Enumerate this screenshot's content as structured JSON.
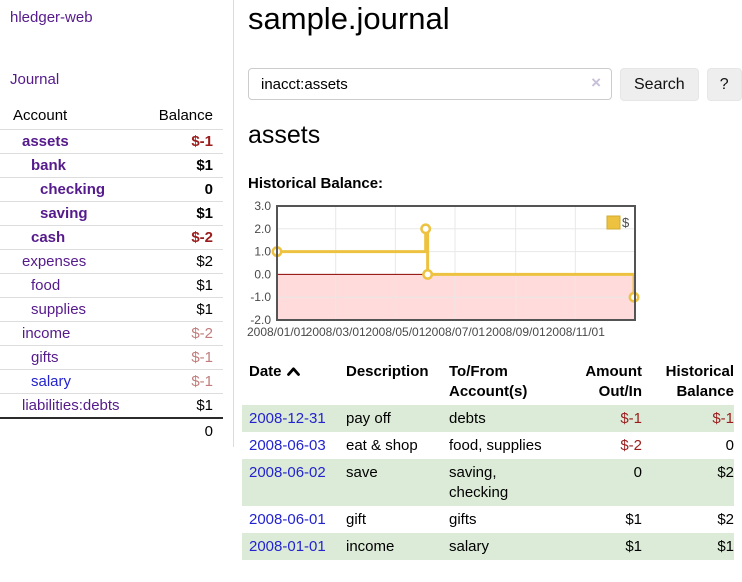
{
  "colors": {
    "link_purple": "#551a8b",
    "link_blue": "#2323cf",
    "negative": "#9b1c1c",
    "negative_light": "#c17d7d",
    "row_highlight_green": "#dcebd8",
    "chart_line": "#edc240",
    "chart_negative_fill": "#ffdbdb",
    "chart_zero_line": "#8b0000",
    "chart_grid": "#e8e8e8",
    "chart_border": "#545454",
    "button_bg": "#eeeeee"
  },
  "sidebar": {
    "app_title": "hledger-web",
    "nav_journal": "Journal",
    "accounts": {
      "col_account": "Account",
      "col_balance": "Balance",
      "rows": [
        {
          "label": "assets",
          "indent": 1,
          "bold": true,
          "balance": "$-1",
          "balance_style": "negative",
          "link_color": "purple"
        },
        {
          "label": "bank",
          "indent": 2,
          "bold": true,
          "balance": "$1",
          "balance_style": "normal",
          "link_color": "purple"
        },
        {
          "label": "checking",
          "indent": 3,
          "bold": true,
          "balance": "0",
          "balance_style": "normal",
          "link_color": "purple"
        },
        {
          "label": "saving",
          "indent": 3,
          "bold": true,
          "balance": "$1",
          "balance_style": "normal",
          "link_color": "purple"
        },
        {
          "label": "cash",
          "indent": 2,
          "bold": true,
          "balance": "$-2",
          "balance_style": "negative",
          "link_color": "purple"
        },
        {
          "label": "expenses",
          "indent": 1,
          "bold": false,
          "balance": "$2",
          "balance_style": "normal",
          "link_color": "purple"
        },
        {
          "label": "food",
          "indent": 2,
          "bold": false,
          "balance": "$1",
          "balance_style": "normal",
          "link_color": "purple"
        },
        {
          "label": "supplies",
          "indent": 2,
          "bold": false,
          "balance": "$1",
          "balance_style": "normal",
          "link_color": "purple"
        },
        {
          "label": "income",
          "indent": 1,
          "bold": false,
          "balance": "$-2",
          "balance_style": "negative_light",
          "link_color": "purple"
        },
        {
          "label": "gifts",
          "indent": 2,
          "bold": false,
          "balance": "$-1",
          "balance_style": "negative_light",
          "link_color": "purple"
        },
        {
          "label": "salary",
          "indent": 2,
          "bold": false,
          "balance": "$-1",
          "balance_style": "negative_light",
          "link_color": "blue"
        },
        {
          "label": "liabilities:debts",
          "indent": 1,
          "bold": false,
          "balance": "$1",
          "balance_style": "normal",
          "link_color": "purple"
        }
      ],
      "total": "0"
    }
  },
  "main": {
    "title": "sample.journal",
    "search": {
      "value": "inacct:assets",
      "clear_glyph": "×",
      "search_button": "Search",
      "help_button": "?"
    },
    "account_title": "assets",
    "chart_heading": "Historical Balance:"
  },
  "chart_data": {
    "type": "line",
    "interpolation": "step",
    "title": "Historical Balance:",
    "series": [
      {
        "name": "$",
        "color": "#edc240",
        "points": [
          {
            "date": "2008-01-01",
            "value": 1.0
          },
          {
            "date": "2008-06-01",
            "value": 2.0
          },
          {
            "date": "2008-06-03",
            "value": 0.0
          },
          {
            "date": "2008-12-31",
            "value": -1.0
          }
        ]
      }
    ],
    "x_range": [
      "2008-01-01",
      "2009-01-01"
    ],
    "ylim": [
      -2.0,
      3.0
    ],
    "y_ticks": [
      {
        "v": 3.0,
        "label": "3.0"
      },
      {
        "v": 2.0,
        "label": "2.0"
      },
      {
        "v": 1.0,
        "label": "1.0"
      },
      {
        "v": 0.0,
        "label": "0.0"
      },
      {
        "v": -1.0,
        "label": "-1.0"
      },
      {
        "v": -2.0,
        "label": "-2.0"
      }
    ],
    "x_ticks": [
      {
        "date": "2008-01-01",
        "label": "2008/01/01"
      },
      {
        "date": "2008-03-01",
        "label": "2008/03/01"
      },
      {
        "date": "2008-05-01",
        "label": "2008/05/01"
      },
      {
        "date": "2008-07-01",
        "label": "2008/07/01"
      },
      {
        "date": "2008-09-01",
        "label": "2008/09/01"
      },
      {
        "date": "2008-11-01",
        "label": "2008/11/01"
      }
    ],
    "grid": true,
    "negative_region_fill": "#ffdbdb",
    "zero_line_color": "#8b0000",
    "legend": {
      "label": "$",
      "position": "top-right"
    }
  },
  "register": {
    "headers": [
      "Date",
      "Description",
      "To/From Account(s)",
      "Amount Out/In",
      "Historical Balance"
    ],
    "sort": {
      "column": "Date",
      "direction": "ascending"
    },
    "rows": [
      {
        "date": "2008-12-31",
        "description": "pay off",
        "accounts": "debts",
        "amount": "$-1",
        "amount_negative": true,
        "balance": "$-1",
        "balance_negative": true,
        "highlighted": true
      },
      {
        "date": "2008-06-03",
        "description": "eat & shop",
        "accounts": "food, supplies",
        "amount": "$-2",
        "amount_negative": true,
        "balance": "0",
        "balance_negative": false,
        "highlighted": false
      },
      {
        "date": "2008-06-02",
        "description": "save",
        "accounts": "saving, checking",
        "amount": "0",
        "amount_negative": false,
        "balance": "$2",
        "balance_negative": false,
        "highlighted": true
      },
      {
        "date": "2008-06-01",
        "description": "gift",
        "accounts": "gifts",
        "amount": "$1",
        "amount_negative": false,
        "balance": "$2",
        "balance_negative": false,
        "highlighted": false
      },
      {
        "date": "2008-01-01",
        "description": "income",
        "accounts": "salary",
        "amount": "$1",
        "amount_negative": false,
        "balance": "$1",
        "balance_negative": false,
        "highlighted": true
      }
    ]
  }
}
